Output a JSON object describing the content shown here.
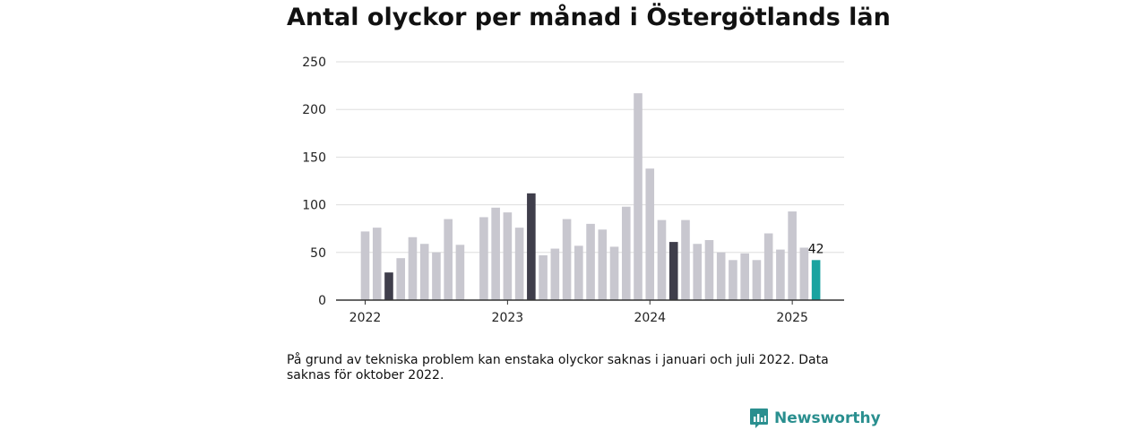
{
  "title": "Antal olyckor per månad i Östergötlands län",
  "footnote": "På grund av tekniska problem kan enstaka olyckor saknas i januari och juli 2022. Data saknas för oktober 2022.",
  "brand": "Newsworthy",
  "colors": {
    "bar": "#c8c7cf",
    "highlight": "#3f3e4b",
    "latest": "#1aa3a0",
    "grid": "#dddddd",
    "axis": "#333333",
    "brand": "#2a8f8f"
  },
  "chart_data": {
    "type": "bar",
    "ylim": [
      0,
      250
    ],
    "yticks": [
      0,
      50,
      100,
      150,
      200,
      250
    ],
    "year_labels": [
      {
        "label": "2022",
        "month_index": 0
      },
      {
        "label": "2023",
        "month_index": 12
      },
      {
        "label": "2024",
        "month_index": 24
      },
      {
        "label": "2025",
        "month_index": 36
      }
    ],
    "months": [
      "2022-01",
      "2022-02",
      "2022-03",
      "2022-04",
      "2022-05",
      "2022-06",
      "2022-07",
      "2022-08",
      "2022-09",
      "2022-10",
      "2022-11",
      "2022-12",
      "2023-01",
      "2023-02",
      "2023-03",
      "2023-04",
      "2023-05",
      "2023-06",
      "2023-07",
      "2023-08",
      "2023-09",
      "2023-10",
      "2023-11",
      "2023-12",
      "2024-01",
      "2024-02",
      "2024-03",
      "2024-04",
      "2024-05",
      "2024-06",
      "2024-07",
      "2024-08",
      "2024-09",
      "2024-10",
      "2024-11",
      "2024-12",
      "2025-01",
      "2025-02",
      "2025-03"
    ],
    "values": [
      72,
      76,
      29,
      44,
      66,
      59,
      50,
      85,
      58,
      null,
      87,
      97,
      92,
      76,
      112,
      47,
      54,
      85,
      57,
      80,
      74,
      56,
      98,
      217,
      138,
      84,
      61,
      84,
      59,
      63,
      50,
      42,
      49,
      42,
      70,
      53,
      93,
      55,
      42
    ],
    "highlighted_months": [
      "2022-03",
      "2023-03",
      "2024-03"
    ],
    "latest_month": "2025-03",
    "value_label": {
      "month": "2025-03",
      "text": "42"
    }
  }
}
